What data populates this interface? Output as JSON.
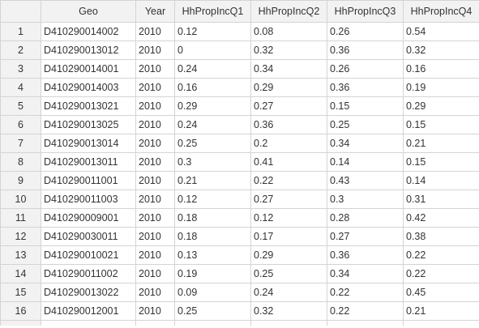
{
  "grid": {
    "columns": [
      "Geo",
      "Year",
      "HhPropIncQ1",
      "HhPropIncQ2",
      "HhPropIncQ3",
      "HhPropIncQ4"
    ],
    "rows": [
      {
        "n": "1",
        "cells": [
          "D410290014002",
          "2010",
          "0.12",
          "0.08",
          "0.26",
          "0.54"
        ]
      },
      {
        "n": "2",
        "cells": [
          "D410290013012",
          "2010",
          "0",
          "0.32",
          "0.36",
          "0.32"
        ]
      },
      {
        "n": "3",
        "cells": [
          "D410290014001",
          "2010",
          "0.24",
          "0.34",
          "0.26",
          "0.16"
        ]
      },
      {
        "n": "4",
        "cells": [
          "D410290014003",
          "2010",
          "0.16",
          "0.29",
          "0.36",
          "0.19"
        ]
      },
      {
        "n": "5",
        "cells": [
          "D410290013021",
          "2010",
          "0.29",
          "0.27",
          "0.15",
          "0.29"
        ]
      },
      {
        "n": "6",
        "cells": [
          "D410290013025",
          "2010",
          "0.24",
          "0.36",
          "0.25",
          "0.15"
        ]
      },
      {
        "n": "7",
        "cells": [
          "D410290013014",
          "2010",
          "0.25",
          "0.2",
          "0.34",
          "0.21"
        ]
      },
      {
        "n": "8",
        "cells": [
          "D410290013011",
          "2010",
          "0.3",
          "0.41",
          "0.14",
          "0.15"
        ]
      },
      {
        "n": "9",
        "cells": [
          "D410290011001",
          "2010",
          "0.21",
          "0.22",
          "0.43",
          "0.14"
        ]
      },
      {
        "n": "10",
        "cells": [
          "D410290011003",
          "2010",
          "0.12",
          "0.27",
          "0.3",
          "0.31"
        ]
      },
      {
        "n": "11",
        "cells": [
          "D410290009001",
          "2010",
          "0.18",
          "0.12",
          "0.28",
          "0.42"
        ]
      },
      {
        "n": "12",
        "cells": [
          "D410290030011",
          "2010",
          "0.18",
          "0.17",
          "0.27",
          "0.38"
        ]
      },
      {
        "n": "13",
        "cells": [
          "D410290010021",
          "2010",
          "0.13",
          "0.29",
          "0.36",
          "0.22"
        ]
      },
      {
        "n": "14",
        "cells": [
          "D410290011002",
          "2010",
          "0.19",
          "0.25",
          "0.34",
          "0.22"
        ]
      },
      {
        "n": "15",
        "cells": [
          "D410290013022",
          "2010",
          "0.09",
          "0.24",
          "0.22",
          "0.45"
        ]
      },
      {
        "n": "16",
        "cells": [
          "D410290012001",
          "2010",
          "0.25",
          "0.32",
          "0.22",
          "0.21"
        ]
      }
    ]
  },
  "colors": {
    "header_bg": "#f2f2f2",
    "border": "#d4d4d4",
    "text": "#333333"
  }
}
